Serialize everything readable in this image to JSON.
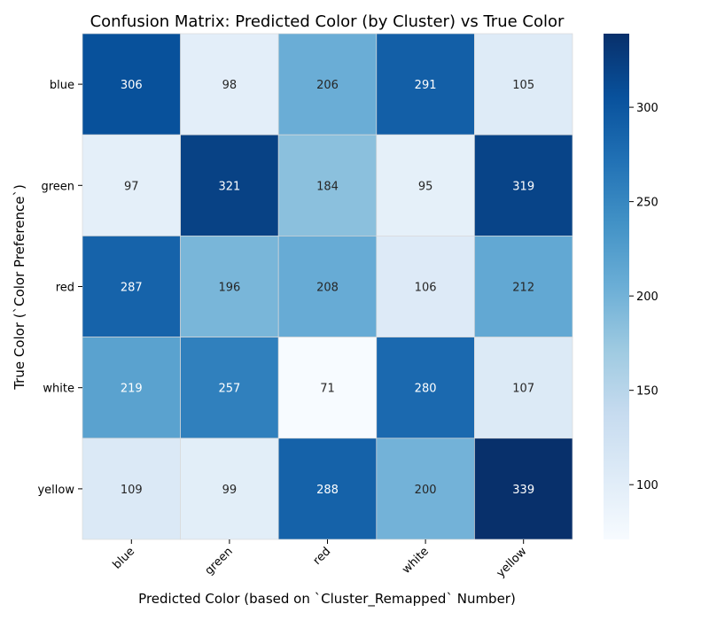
{
  "chart_data": {
    "type": "heatmap",
    "title": "Confusion Matrix: Predicted Color (by Cluster) vs True Color",
    "xlabel": "Predicted Color (based on `Cluster_Remapped` Number)",
    "ylabel": "True Color (`Color Preference`)",
    "x_categories": [
      "blue",
      "green",
      "red",
      "white",
      "yellow"
    ],
    "y_categories": [
      "blue",
      "green",
      "red",
      "white",
      "yellow"
    ],
    "values": [
      [
        306,
        98,
        206,
        291,
        105
      ],
      [
        97,
        321,
        184,
        95,
        319
      ],
      [
        287,
        196,
        208,
        106,
        212
      ],
      [
        219,
        257,
        71,
        280,
        107
      ],
      [
        109,
        99,
        288,
        200,
        339
      ]
    ],
    "colormap": "Blues",
    "vmin": 71,
    "vmax": 339,
    "colorbar_ticks": [
      100,
      150,
      200,
      250,
      300
    ],
    "grid": true,
    "colorbar_position": "right"
  }
}
